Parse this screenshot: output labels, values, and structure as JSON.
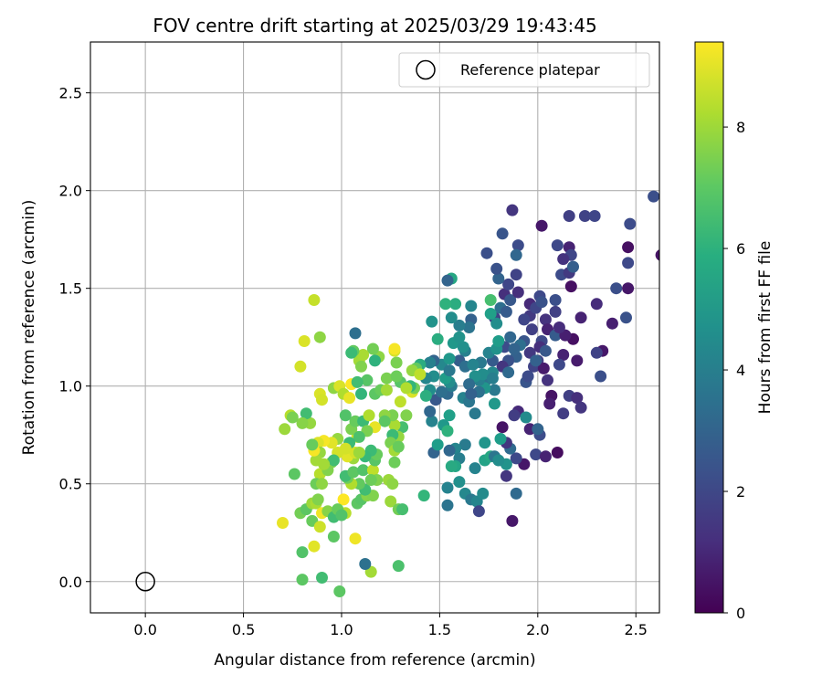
{
  "chart_data": {
    "type": "scatter",
    "title": "FOV centre drift starting at 2025/03/29 19:43:45",
    "xlabel": "Angular distance from reference (arcmin)",
    "ylabel": "Rotation from reference (arcmin)",
    "xlim": [
      -0.28,
      2.62
    ],
    "ylim": [
      -0.16,
      2.76
    ],
    "xticks": [
      0.0,
      0.5,
      1.0,
      1.5,
      2.0,
      2.5
    ],
    "yticks": [
      0.0,
      0.5,
      1.0,
      1.5,
      2.0,
      2.5
    ],
    "xtick_labels": [
      "0.0",
      "0.5",
      "1.0",
      "1.5",
      "2.0",
      "2.5"
    ],
    "ytick_labels": [
      "0.0",
      "0.5",
      "1.0",
      "1.5",
      "2.0",
      "2.5"
    ],
    "grid": true,
    "legend": {
      "position": "upper right",
      "entries": [
        {
          "label": "Reference platepar",
          "marker": "open-circle"
        }
      ]
    },
    "reference_point": {
      "name": "Reference platepar",
      "x": 0.0,
      "y": 0.0
    },
    "colorbar": {
      "label": "Hours from first FF file",
      "colormap": "viridis",
      "range": [
        0,
        9.4
      ],
      "ticks": [
        0,
        2,
        4,
        6,
        8
      ],
      "tick_labels": [
        "0",
        "2",
        "4",
        "6",
        "8"
      ]
    },
    "points": [
      [
        1.87,
        1.9,
        1.5
      ],
      [
        2.02,
        1.82,
        0.6
      ],
      [
        2.16,
        1.87,
        1.8
      ],
      [
        2.24,
        1.87,
        1.9
      ],
      [
        2.29,
        1.87,
        2.0
      ],
      [
        2.59,
        1.97,
        2.3
      ],
      [
        2.47,
        1.83,
        2.2
      ],
      [
        2.63,
        1.67,
        0.5
      ],
      [
        2.46,
        1.71,
        0.4
      ],
      [
        2.16,
        1.71,
        0.9
      ],
      [
        2.4,
        1.5,
        2.3
      ],
      [
        2.46,
        1.63,
        2.1
      ],
      [
        2.46,
        1.5,
        0.6
      ],
      [
        2.45,
        1.35,
        2.4
      ],
      [
        2.22,
        1.35,
        0.9
      ],
      [
        2.3,
        1.42,
        1.2
      ],
      [
        2.38,
        1.32,
        0.8
      ],
      [
        2.33,
        1.18,
        0.6
      ],
      [
        2.3,
        1.17,
        1.9
      ],
      [
        2.32,
        1.05,
        2.3
      ],
      [
        2.18,
        1.24,
        0.4
      ],
      [
        2.2,
        1.13,
        0.7
      ],
      [
        2.13,
        1.16,
        0.9
      ],
      [
        2.07,
        0.95,
        0.5
      ],
      [
        2.13,
        0.86,
        1.7
      ],
      [
        2.16,
        0.95,
        1.8
      ],
      [
        2.2,
        0.94,
        1.3
      ],
      [
        2.22,
        0.89,
        1.5
      ],
      [
        2.05,
        1.03,
        1.4
      ],
      [
        2.06,
        0.91,
        0.8
      ],
      [
        1.96,
        0.78,
        0.9
      ],
      [
        2.01,
        0.75,
        2.2
      ],
      [
        2.0,
        0.78,
        3.0
      ],
      [
        1.99,
        0.65,
        2.1
      ],
      [
        2.04,
        0.64,
        0.9
      ],
      [
        2.1,
        0.66,
        0.3
      ],
      [
        1.93,
        0.6,
        0.6
      ],
      [
        1.89,
        0.63,
        2.1
      ],
      [
        1.87,
        0.31,
        0.6
      ],
      [
        1.84,
        0.54,
        1.5
      ],
      [
        1.89,
        0.45,
        3.2
      ],
      [
        1.84,
        0.6,
        4.8
      ],
      [
        1.86,
        0.68,
        3.2
      ],
      [
        1.82,
        0.79,
        0.5
      ],
      [
        1.84,
        0.71,
        1.5
      ],
      [
        1.9,
        0.87,
        1.1
      ],
      [
        1.88,
        0.85,
        1.7
      ],
      [
        1.94,
        0.84,
        4.5
      ],
      [
        1.94,
        1.02,
        2.5
      ],
      [
        1.95,
        1.05,
        2.2
      ],
      [
        1.98,
        1.1,
        1.9
      ],
      [
        1.96,
        1.17,
        1.6
      ],
      [
        1.89,
        1.15,
        2.9
      ],
      [
        1.86,
        1.25,
        3.1
      ],
      [
        1.83,
        1.2,
        2.2
      ],
      [
        1.78,
        1.35,
        1.9
      ],
      [
        1.81,
        1.4,
        3.4
      ],
      [
        1.83,
        1.47,
        1.3
      ],
      [
        1.85,
        1.52,
        2.0
      ],
      [
        1.86,
        1.44,
        2.6
      ],
      [
        1.84,
        1.38,
        2.7
      ],
      [
        1.8,
        1.55,
        3.0
      ],
      [
        1.79,
        1.6,
        2.4
      ],
      [
        1.82,
        1.78,
        2.5
      ],
      [
        1.74,
        1.68,
        2.3
      ],
      [
        1.9,
        1.72,
        2.2
      ],
      [
        1.89,
        1.67,
        3.1
      ],
      [
        1.89,
        1.57,
        1.9
      ],
      [
        1.9,
        1.48,
        1.3
      ],
      [
        1.96,
        1.42,
        1.1
      ],
      [
        1.96,
        1.36,
        1.6
      ],
      [
        1.99,
        1.4,
        2.0
      ],
      [
        2.01,
        1.46,
        2.1
      ],
      [
        2.02,
        1.43,
        2.4
      ],
      [
        2.09,
        1.44,
        2.3
      ],
      [
        2.09,
        1.38,
        1.8
      ],
      [
        2.04,
        1.34,
        1.4
      ],
      [
        2.05,
        1.29,
        0.9
      ],
      [
        2.02,
        1.23,
        2.1
      ],
      [
        2.01,
        1.2,
        1.3
      ],
      [
        2.04,
        1.18,
        2.6
      ],
      [
        2.0,
        1.13,
        1.8
      ],
      [
        2.03,
        1.09,
        0.7
      ],
      [
        2.11,
        1.11,
        2.1
      ],
      [
        2.09,
        1.26,
        2.7
      ],
      [
        2.12,
        1.57,
        2.2
      ],
      [
        2.16,
        1.58,
        1.6
      ],
      [
        2.17,
        1.67,
        2.0
      ],
      [
        2.13,
        1.65,
        1.4
      ],
      [
        2.18,
        1.61,
        2.8
      ],
      [
        2.1,
        1.72,
        2.1
      ],
      [
        2.17,
        1.51,
        0.4
      ],
      [
        2.14,
        1.26,
        0.8
      ],
      [
        2.11,
        1.3,
        1.2
      ],
      [
        1.99,
        1.13,
        2.9
      ],
      [
        1.97,
        1.29,
        1.8
      ],
      [
        1.93,
        1.34,
        2.0
      ],
      [
        1.93,
        1.23,
        2.5
      ],
      [
        1.91,
        1.21,
        3.4
      ],
      [
        1.88,
        1.19,
        3.0
      ],
      [
        1.85,
        1.13,
        2.4
      ],
      [
        1.82,
        1.1,
        1.5
      ],
      [
        1.85,
        1.07,
        3.2
      ],
      [
        1.77,
        1.07,
        4.4
      ],
      [
        1.73,
        1.02,
        3.6
      ],
      [
        1.78,
        0.98,
        3.8
      ],
      [
        1.78,
        0.91,
        5.0
      ],
      [
        1.73,
        0.99,
        4.9
      ],
      [
        1.7,
        0.97,
        3.5
      ],
      [
        1.7,
        1.03,
        4.1
      ],
      [
        1.72,
        1.06,
        4.6
      ],
      [
        1.77,
        1.04,
        4.0
      ],
      [
        1.71,
        1.12,
        3.8
      ],
      [
        1.77,
        1.13,
        2.7
      ],
      [
        1.75,
        1.17,
        4.2
      ],
      [
        1.79,
        1.19,
        4.8
      ],
      [
        1.8,
        1.23,
        5.2
      ],
      [
        1.79,
        1.32,
        4.6
      ],
      [
        1.76,
        1.37,
        5.3
      ],
      [
        1.76,
        1.44,
        6.6
      ],
      [
        1.66,
        1.41,
        4.3
      ],
      [
        1.66,
        1.34,
        2.9
      ],
      [
        1.65,
        1.3,
        3.6
      ],
      [
        1.6,
        1.31,
        4.0
      ],
      [
        1.63,
        1.18,
        4.1
      ],
      [
        1.6,
        1.13,
        2.8
      ],
      [
        1.63,
        1.1,
        3.4
      ],
      [
        1.67,
        1.11,
        4.2
      ],
      [
        1.68,
        1.05,
        4.7
      ],
      [
        1.65,
        1.01,
        3.3
      ],
      [
        1.62,
        0.94,
        4.2
      ],
      [
        1.65,
        0.92,
        3.7
      ],
      [
        1.66,
        0.96,
        2.9
      ],
      [
        1.68,
        0.86,
        3.8
      ],
      [
        1.63,
        0.7,
        3.9
      ],
      [
        1.58,
        0.68,
        4.3
      ],
      [
        1.6,
        0.63,
        4.0
      ],
      [
        1.55,
        0.67,
        3.1
      ],
      [
        1.58,
        0.59,
        5.5
      ],
      [
        1.56,
        0.59,
        5.7
      ],
      [
        1.6,
        0.51,
        4.7
      ],
      [
        1.54,
        0.48,
        4.2
      ],
      [
        1.63,
        0.45,
        4.4
      ],
      [
        1.66,
        0.42,
        3.8
      ],
      [
        1.69,
        0.41,
        4.3
      ],
      [
        1.72,
        0.45,
        4.5
      ],
      [
        1.68,
        0.58,
        4.2
      ],
      [
        1.73,
        0.62,
        5.4
      ],
      [
        1.76,
        0.64,
        5.6
      ],
      [
        1.78,
        0.64,
        3.7
      ],
      [
        1.8,
        0.62,
        4.6
      ],
      [
        1.81,
        0.73,
        5.2
      ],
      [
        1.73,
        0.71,
        4.9
      ],
      [
        1.7,
        0.36,
        2.0
      ],
      [
        1.54,
        0.39,
        3.6
      ],
      [
        1.42,
        0.44,
        6.2
      ],
      [
        1.47,
        0.66,
        3.0
      ],
      [
        1.49,
        0.7,
        5.2
      ],
      [
        1.52,
        0.8,
        5.0
      ],
      [
        1.54,
        0.77,
        6.0
      ],
      [
        1.55,
        0.85,
        5.3
      ],
      [
        1.46,
        0.82,
        4.2
      ],
      [
        1.45,
        0.87,
        3.1
      ],
      [
        1.48,
        0.93,
        2.6
      ],
      [
        1.54,
        0.96,
        3.2
      ],
      [
        1.56,
        1.0,
        3.9
      ],
      [
        1.55,
        1.02,
        4.6
      ],
      [
        1.53,
        1.04,
        5.2
      ],
      [
        1.51,
        1.11,
        4.4
      ],
      [
        1.55,
        1.08,
        3.8
      ],
      [
        1.51,
        0.97,
        3.4
      ],
      [
        1.55,
        1.14,
        5.0
      ],
      [
        1.57,
        1.22,
        5.0
      ],
      [
        1.62,
        1.2,
        4.7
      ],
      [
        1.6,
        1.25,
        4.8
      ],
      [
        1.56,
        1.35,
        4.6
      ],
      [
        1.58,
        1.42,
        5.8
      ],
      [
        1.53,
        1.42,
        6.0
      ],
      [
        1.56,
        1.55,
        5.6
      ],
      [
        1.54,
        1.54,
        3.0
      ],
      [
        1.49,
        1.24,
        5.8
      ],
      [
        1.46,
        1.33,
        4.8
      ],
      [
        1.47,
        1.13,
        3.0
      ],
      [
        1.45,
        1.12,
        4.1
      ],
      [
        1.47,
        1.05,
        4.6
      ],
      [
        1.43,
        1.04,
        4.3
      ],
      [
        1.45,
        0.98,
        4.6
      ],
      [
        1.43,
        0.95,
        5.9
      ],
      [
        1.4,
        1.11,
        5.8
      ],
      [
        1.38,
        1.09,
        7.1
      ],
      [
        1.36,
        1.08,
        7.9
      ],
      [
        1.4,
        1.06,
        8.5
      ],
      [
        1.36,
        0.97,
        8.9
      ],
      [
        1.37,
        0.99,
        7.4
      ],
      [
        1.33,
        0.85,
        7.6
      ],
      [
        1.31,
        0.79,
        6.6
      ],
      [
        1.29,
        0.74,
        7.9
      ],
      [
        1.27,
        0.8,
        8.2
      ],
      [
        1.26,
        0.85,
        7.5
      ],
      [
        1.22,
        0.85,
        7.8
      ],
      [
        1.22,
        0.82,
        7.0
      ],
      [
        1.26,
        0.75,
        6.4
      ],
      [
        1.25,
        0.71,
        7.5
      ],
      [
        1.27,
        0.67,
        8.1
      ],
      [
        1.29,
        0.69,
        7.2
      ],
      [
        1.27,
        0.61,
        7.3
      ],
      [
        1.24,
        0.52,
        8.0
      ],
      [
        1.26,
        0.5,
        7.8
      ],
      [
        1.25,
        0.41,
        8.0
      ],
      [
        1.29,
        0.37,
        7.4
      ],
      [
        1.31,
        0.37,
        6.6
      ],
      [
        1.29,
        0.08,
        6.7
      ],
      [
        1.15,
        0.05,
        8.1
      ],
      [
        1.12,
        0.09,
        3.5
      ],
      [
        1.07,
        0.22,
        9.2
      ],
      [
        1.02,
        0.35,
        8.4
      ],
      [
        1.01,
        0.42,
        9.4
      ],
      [
        1.08,
        0.4,
        7.0
      ],
      [
        1.1,
        0.42,
        6.9
      ],
      [
        1.13,
        0.44,
        7.7
      ],
      [
        1.16,
        0.44,
        7.6
      ],
      [
        1.12,
        0.47,
        6.5
      ],
      [
        1.09,
        0.5,
        7.1
      ],
      [
        1.05,
        0.5,
        8.3
      ],
      [
        1.03,
        0.53,
        7.3
      ],
      [
        1.02,
        0.54,
        6.5
      ],
      [
        1.06,
        0.56,
        7.0
      ],
      [
        1.11,
        0.57,
        6.8
      ],
      [
        1.16,
        0.57,
        8.5
      ],
      [
        1.18,
        0.52,
        7.6
      ],
      [
        1.15,
        0.52,
        7.3
      ],
      [
        1.17,
        0.62,
        6.9
      ],
      [
        1.18,
        0.65,
        7.2
      ],
      [
        1.15,
        0.67,
        6.4
      ],
      [
        1.12,
        0.64,
        6.3
      ],
      [
        1.06,
        0.63,
        8.0
      ],
      [
        1.03,
        0.64,
        9.0
      ],
      [
        1.07,
        0.66,
        8.8
      ],
      [
        1.09,
        0.66,
        8.0
      ],
      [
        1.08,
        0.74,
        8.8
      ],
      [
        1.05,
        0.78,
        7.5
      ],
      [
        1.07,
        0.82,
        7.2
      ],
      [
        1.11,
        0.82,
        6.4
      ],
      [
        1.14,
        0.85,
        8.3
      ],
      [
        1.17,
        0.79,
        9.1
      ],
      [
        1.13,
        0.77,
        7.5
      ],
      [
        1.09,
        0.74,
        6.7
      ],
      [
        1.04,
        0.71,
        6.4
      ],
      [
        1.02,
        0.68,
        8.8
      ],
      [
        0.98,
        0.66,
        8.8
      ],
      [
        0.95,
        0.61,
        7.6
      ],
      [
        0.96,
        0.62,
        6.5
      ],
      [
        0.98,
        0.73,
        7.9
      ],
      [
        0.95,
        0.71,
        9.0
      ],
      [
        0.91,
        0.72,
        9.3
      ],
      [
        0.88,
        0.71,
        8.9
      ],
      [
        0.89,
        0.66,
        7.9
      ],
      [
        0.87,
        0.62,
        8.1
      ],
      [
        0.89,
        0.55,
        8.4
      ],
      [
        0.87,
        0.5,
        7.3
      ],
      [
        0.9,
        0.5,
        7.8
      ],
      [
        0.93,
        0.57,
        7.6
      ],
      [
        0.91,
        0.6,
        8.1
      ],
      [
        0.86,
        0.67,
        9.3
      ],
      [
        0.85,
        0.7,
        7.2
      ],
      [
        0.84,
        0.81,
        7.9
      ],
      [
        0.82,
        0.86,
        6.5
      ],
      [
        0.8,
        0.81,
        7.7
      ],
      [
        0.74,
        0.85,
        8.4
      ],
      [
        0.75,
        0.84,
        7.5
      ],
      [
        0.71,
        0.78,
        8.0
      ],
      [
        0.76,
        0.55,
        7.0
      ],
      [
        0.79,
        0.35,
        7.4
      ],
      [
        0.82,
        0.37,
        7.0
      ],
      [
        0.85,
        0.4,
        8.0
      ],
      [
        0.87,
        0.4,
        8.2
      ],
      [
        0.88,
        0.42,
        7.6
      ],
      [
        0.9,
        0.35,
        9.2
      ],
      [
        0.85,
        0.31,
        7.2
      ],
      [
        0.89,
        0.28,
        8.7
      ],
      [
        0.93,
        0.36,
        7.7
      ],
      [
        0.96,
        0.33,
        6.5
      ],
      [
        0.98,
        0.37,
        7.2
      ],
      [
        1.0,
        0.34,
        6.8
      ],
      [
        0.96,
        0.23,
        7.0
      ],
      [
        0.86,
        0.18,
        9.0
      ],
      [
        0.7,
        0.3,
        9.1
      ],
      [
        0.8,
        0.15,
        6.8
      ],
      [
        0.8,
        0.01,
        7.0
      ],
      [
        0.9,
        0.02,
        6.5
      ],
      [
        0.99,
        -0.05,
        7.0
      ],
      [
        0.86,
        1.44,
        8.6
      ],
      [
        0.89,
        1.25,
        7.8
      ],
      [
        0.81,
        1.23,
        8.9
      ],
      [
        0.79,
        1.1,
        8.8
      ],
      [
        0.89,
        0.96,
        8.9
      ],
      [
        0.9,
        0.93,
        8.8
      ],
      [
        0.96,
        0.99,
        7.8
      ],
      [
        0.99,
        1.0,
        8.9
      ],
      [
        1.01,
        0.96,
        8.3
      ],
      [
        1.02,
        0.85,
        6.8
      ],
      [
        1.04,
        0.94,
        9.1
      ],
      [
        1.05,
        1.01,
        9.4
      ],
      [
        1.09,
        1.13,
        8.1
      ],
      [
        1.1,
        1.1,
        7.6
      ],
      [
        1.13,
        1.03,
        6.9
      ],
      [
        1.08,
        1.02,
        6.5
      ],
      [
        1.1,
        0.96,
        6.2
      ],
      [
        1.17,
        0.96,
        7.0
      ],
      [
        1.2,
        0.98,
        7.2
      ],
      [
        1.23,
        0.98,
        8.1
      ],
      [
        1.23,
        1.04,
        7.5
      ],
      [
        1.3,
        1.02,
        6.9
      ],
      [
        1.35,
        1.0,
        6.2
      ],
      [
        1.33,
        0.99,
        8.3
      ],
      [
        1.3,
        0.92,
        8.5
      ],
      [
        1.28,
        1.05,
        7.3
      ],
      [
        1.28,
        1.12,
        7.5
      ],
      [
        1.27,
        1.18,
        8.8
      ],
      [
        1.27,
        1.19,
        9.3
      ],
      [
        1.19,
        1.15,
        7.8
      ],
      [
        1.16,
        1.19,
        7.4
      ],
      [
        1.11,
        1.16,
        8.2
      ],
      [
        1.06,
        1.18,
        7.1
      ],
      [
        1.05,
        1.17,
        6.4
      ],
      [
        1.07,
        1.27,
        3.4
      ],
      [
        1.17,
        1.13,
        6.0
      ]
    ]
  }
}
